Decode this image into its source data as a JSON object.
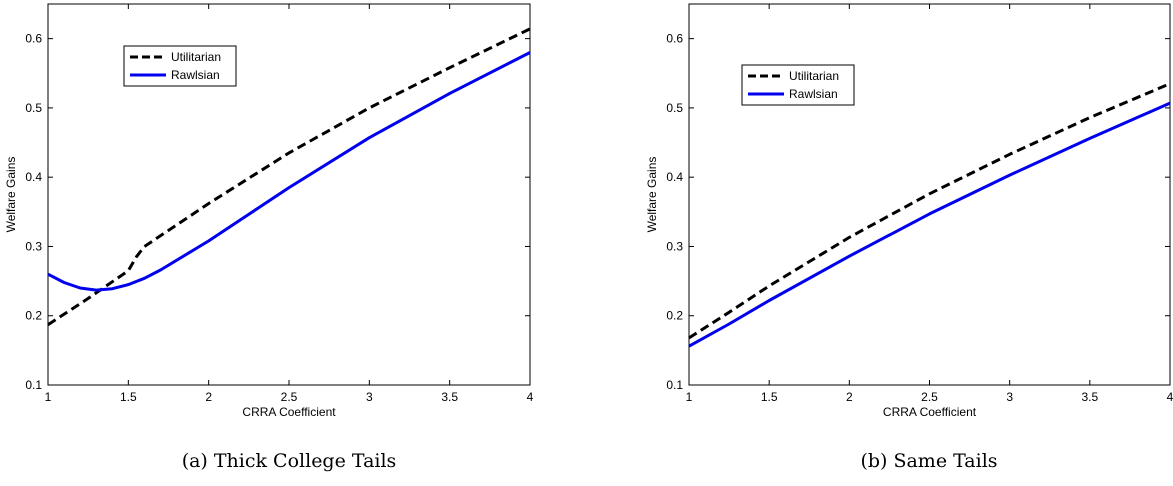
{
  "chart_data": [
    {
      "type": "line",
      "caption": "(a)  Thick College Tails",
      "xlabel": "CRRA Coefficient",
      "ylabel": "Welfare Gains",
      "xlim": [
        1,
        4
      ],
      "ylim": [
        0.1,
        0.65
      ],
      "xticks": [
        1,
        1.5,
        2,
        2.5,
        3,
        3.5,
        4
      ],
      "xtick_labels": [
        "1",
        "1.5",
        "2",
        "2.5",
        "3",
        "3.5",
        "4"
      ],
      "yticks": [
        0.1,
        0.2,
        0.3,
        0.4,
        0.5,
        0.6
      ],
      "ytick_labels": [
        "0.1",
        "0.2",
        "0.3",
        "0.4",
        "0.5",
        "0.6"
      ],
      "legend": "upper-left",
      "series": [
        {
          "name": "Utilitarian",
          "style": "dashed",
          "color": "#000000",
          "x": [
            1,
            1.25,
            1.5,
            1.55,
            1.6,
            2,
            2.5,
            3,
            3.5,
            4
          ],
          "y": [
            0.187,
            0.225,
            0.265,
            0.285,
            0.3,
            0.362,
            0.435,
            0.5,
            0.558,
            0.614
          ]
        },
        {
          "name": "Rawlsian",
          "style": "solid",
          "color": "#0000ee",
          "x": [
            1,
            1.1,
            1.2,
            1.3,
            1.4,
            1.5,
            1.6,
            1.7,
            2,
            2.5,
            3,
            3.5,
            4
          ],
          "y": [
            0.26,
            0.248,
            0.24,
            0.237,
            0.239,
            0.245,
            0.254,
            0.266,
            0.308,
            0.385,
            0.457,
            0.521,
            0.58
          ]
        }
      ]
    },
    {
      "type": "line",
      "caption": "(b)  Same Tails",
      "xlabel": "CRRA Coefficient",
      "ylabel": "Welfare Gains",
      "xlim": [
        1,
        4
      ],
      "ylim": [
        0.1,
        0.65
      ],
      "xticks": [
        1,
        1.5,
        2,
        2.5,
        3,
        3.5,
        4
      ],
      "xtick_labels": [
        "1",
        "1.5",
        "2",
        "2.5",
        "3",
        "3.5",
        "4"
      ],
      "yticks": [
        0.1,
        0.2,
        0.3,
        0.4,
        0.5,
        0.6
      ],
      "ytick_labels": [
        "0.1",
        "0.2",
        "0.3",
        "0.4",
        "0.5",
        "0.6"
      ],
      "legend": "upper-left",
      "series": [
        {
          "name": "Utilitarian",
          "style": "dashed",
          "color": "#000000",
          "x": [
            1,
            1.25,
            1.5,
            2,
            2.5,
            3,
            3.5,
            4
          ],
          "y": [
            0.168,
            0.205,
            0.243,
            0.313,
            0.376,
            0.433,
            0.486,
            0.535
          ]
        },
        {
          "name": "Rawlsian",
          "style": "solid",
          "color": "#0000ee",
          "x": [
            1,
            1.25,
            1.5,
            2,
            2.5,
            3,
            3.5,
            4
          ],
          "y": [
            0.156,
            0.188,
            0.222,
            0.286,
            0.347,
            0.403,
            0.456,
            0.507
          ]
        }
      ]
    }
  ]
}
